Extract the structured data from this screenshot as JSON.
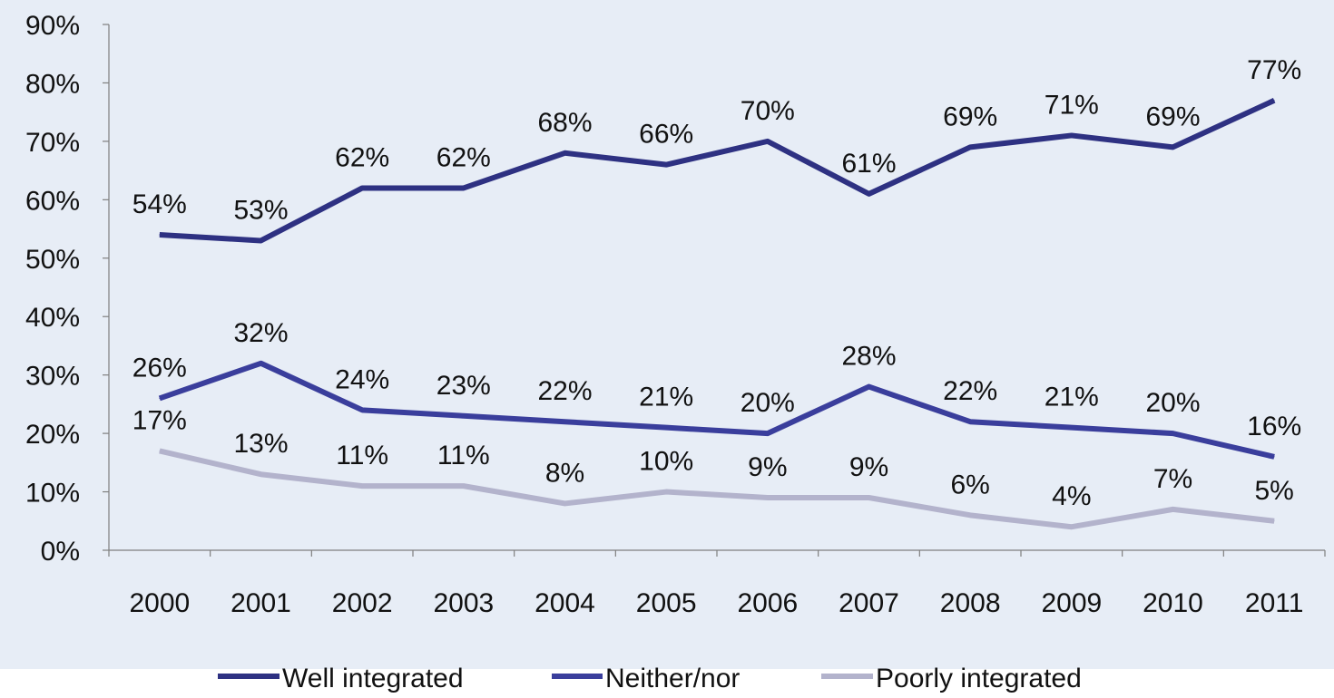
{
  "colors": {
    "plot_background": "#E7EDF6",
    "axis": "#7F7F7F",
    "well_integrated": "#2E3182",
    "neither_nor": "#3A3E9C",
    "poorly_integrated": "#B3B3CC"
  },
  "chart_data": {
    "type": "line",
    "title": "",
    "xlabel": "",
    "ylabel": "",
    "ylim": [
      0,
      90
    ],
    "y_unit": "%",
    "yticks": [
      "0%",
      "10%",
      "20%",
      "30%",
      "40%",
      "50%",
      "60%",
      "70%",
      "80%",
      "90%"
    ],
    "x": [
      "2000",
      "2001",
      "2002",
      "2003",
      "2004",
      "2005",
      "2006",
      "2007",
      "2008",
      "2009",
      "2010",
      "2011"
    ],
    "grid": false,
    "legend_position": "bottom",
    "series": [
      {
        "name": "Well integrated",
        "color": "#2E3182",
        "values": [
          54,
          53,
          62,
          62,
          68,
          66,
          70,
          61,
          69,
          71,
          69,
          77
        ],
        "labels": [
          "54%",
          "53%",
          "62%",
          "62%",
          "68%",
          "66%",
          "70%",
          "61%",
          "69%",
          "71%",
          "69%",
          "77%"
        ]
      },
      {
        "name": "Neither/nor",
        "color": "#3A3E9C",
        "values": [
          26,
          32,
          24,
          23,
          22,
          21,
          20,
          28,
          22,
          21,
          20,
          16
        ],
        "labels": [
          "26%",
          "32%",
          "24%",
          "23%",
          "22%",
          "21%",
          "20%",
          "28%",
          "22%",
          "21%",
          "20%",
          "16%"
        ]
      },
      {
        "name": "Poorly integrated",
        "color": "#B3B3CC",
        "values": [
          17,
          13,
          11,
          11,
          8,
          10,
          9,
          9,
          6,
          4,
          7,
          5
        ],
        "labels": [
          "17%",
          "13%",
          "11%",
          "11%",
          "8%",
          "10%",
          "9%",
          "9%",
          "6%",
          "4%",
          "7%",
          "5%"
        ]
      }
    ]
  }
}
